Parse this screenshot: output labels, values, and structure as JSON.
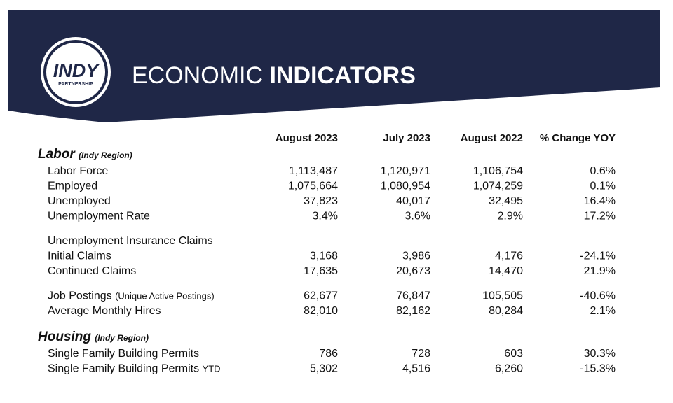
{
  "header": {
    "logo": {
      "name": "INDY",
      "sub": "PARTNERSHIP"
    },
    "title_light": "ECONOMIC",
    "title_bold": "INDICATORS"
  },
  "table": {
    "columns": [
      "August 2023",
      "July 2023",
      "August 2022",
      "% Change YOY"
    ],
    "sections": [
      {
        "title": "Labor",
        "note": "(Indy Region)",
        "groups": [
          [
            {
              "label": "Labor Force",
              "values": [
                "1,113,487",
                "1,120,971",
                "1,106,754",
                "0.6%"
              ]
            },
            {
              "label": "Employed",
              "values": [
                "1,075,664",
                "1,080,954",
                "1,074,259",
                "0.1%"
              ]
            },
            {
              "label": "Unemployed",
              "values": [
                "37,823",
                "40,017",
                "32,495",
                "16.4%"
              ]
            },
            {
              "label": "Unemployment Rate",
              "values": [
                "3.4%",
                "3.6%",
                "2.9%",
                "17.2%"
              ]
            }
          ],
          [
            {
              "label": "Unemployment Insurance Claims"
            },
            {
              "label": "Initial Claims",
              "values": [
                "3,168",
                "3,986",
                "4,176",
                "-24.1%"
              ]
            },
            {
              "label": "Continued Claims",
              "values": [
                "17,635",
                "20,673",
                "14,470",
                "21.9%"
              ]
            }
          ],
          [
            {
              "label": "Job Postings",
              "note": "(Unique Active Postings)",
              "values": [
                "62,677",
                "76,847",
                "105,505",
                "-40.6%"
              ]
            },
            {
              "label": "Average Monthly Hires",
              "values": [
                "82,010",
                "82,162",
                "80,284",
                "2.1%"
              ]
            }
          ]
        ]
      },
      {
        "title": "Housing",
        "note": "(Indy Region)",
        "groups": [
          [
            {
              "label": "Single Family Building Permits",
              "values": [
                "786",
                "728",
                "603",
                "30.3%"
              ]
            },
            {
              "label": "Single Family Building Permits",
              "note": "YTD",
              "values": [
                "5,302",
                "4,516",
                "6,260",
                "-15.3%"
              ]
            }
          ]
        ]
      }
    ]
  }
}
